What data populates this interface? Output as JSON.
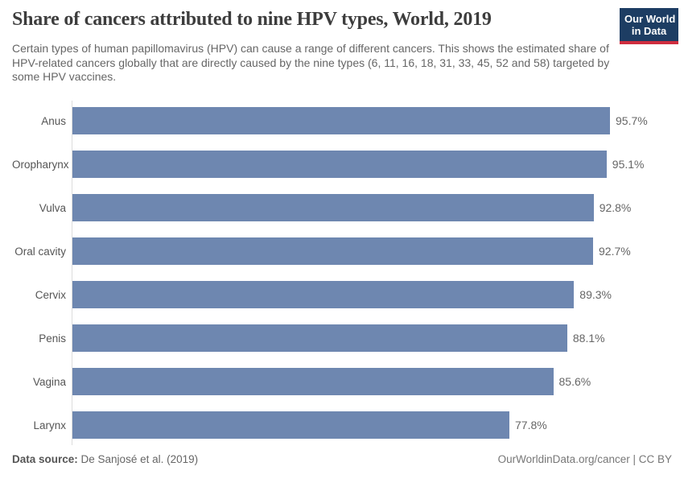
{
  "header": {
    "title": "Share of cancers attributed to nine HPV types, World, 2019",
    "subtitle": "Certain types of human papillomavirus (HPV) can cause a range of different cancers. This shows the estimated share of HPV-related cancers globally that are directly caused by the nine types (6, 11, 16, 18, 31, 33, 45, 52 and 58) targeted by some HPV vaccines.",
    "logo_line1": "Our World",
    "logo_line2": "in Data"
  },
  "chart_data": {
    "type": "bar",
    "orientation": "horizontal",
    "title": "Share of cancers attributed to nine HPV types, World, 2019",
    "categories": [
      "Anus",
      "Oropharynx",
      "Vulva",
      "Oral cavity",
      "Cervix",
      "Penis",
      "Vagina",
      "Larynx"
    ],
    "values": [
      95.7,
      95.1,
      92.8,
      92.7,
      89.3,
      88.1,
      85.6,
      77.8
    ],
    "value_labels": [
      "95.7%",
      "95.1%",
      "92.8%",
      "92.7%",
      "89.3%",
      "88.1%",
      "85.6%",
      "77.8%"
    ],
    "unit": "%",
    "xlim": [
      0,
      100
    ],
    "grid": false,
    "legend": null,
    "bar_color": "#6e87b0"
  },
  "footer": {
    "datasource_label": "Data source:",
    "datasource_value": " De Sanjosé et al. (2019)",
    "link": "OurWorldinData.org/cancer | CC BY"
  },
  "colors": {
    "bar": "#6e87b0",
    "title_text": "#3d3d3d",
    "subtitle_text": "#666666",
    "logo_bg": "#1d3d63",
    "logo_stripe": "#cf2d3f",
    "axis_line": "#dcdcdc"
  }
}
